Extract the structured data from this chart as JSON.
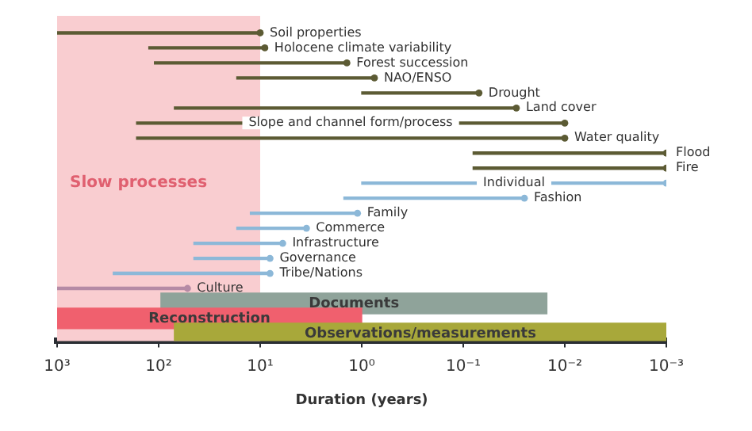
{
  "chart_data": {
    "type": "bar",
    "orientation": "horizontal",
    "xlabel": "Duration (years)",
    "categories": [
      "Soil properties",
      "Holocene climate variability",
      "Forest succession",
      "NAO/ENSO",
      "Drought",
      "Land cover",
      "Slope and channel form/process",
      "Water quality",
      "Flood",
      "Fire",
      "Individual",
      "Fashion",
      "Family",
      "Commerce",
      "Infrastructure",
      "Governance",
      "Tribe/Nations",
      "Culture",
      "Documents",
      "Reconstruction",
      "Observations/measurements"
    ],
    "series": [
      {
        "base": [
          10,
          9,
          1.4,
          0.75,
          0.07,
          0.03,
          0.01,
          0.01,
          0.001,
          0.001,
          0.001,
          0.025,
          1.1,
          3.5,
          6,
          8,
          8,
          52,
          null,
          null,
          null
        ],
        "values": [
          990,
          116,
          108.6,
          16.25,
          0.93,
          69.97,
          164.99,
          164.99,
          0.079,
          0.079,
          0.999,
          1.475,
          11.4,
          13.5,
          39,
          37,
          272,
          948,
          null,
          null,
          null
        ],
        "colors": [
          "#5c5b34",
          "#5c5b34",
          "#5c5b34",
          "#5c5b34",
          "#5c5b34",
          "#5c5b34",
          "#5c5b34",
          "#5c5b34",
          "#5c5b34",
          "#5c5b34",
          "#8cb8d8",
          "#8cb8d8",
          "#8cb8d8",
          "#8cb8d8",
          "#8cb8d8",
          "#8cb8d8",
          "#8cb8d8",
          "#b58aa5",
          null,
          null,
          null
        ]
      },
      {
        "base": [
          null,
          null,
          null,
          null,
          null,
          null,
          null,
          null,
          null,
          null,
          null,
          null,
          null,
          null,
          null,
          null,
          null,
          null,
          0.015,
          1,
          0.001
        ],
        "values": [
          null,
          null,
          null,
          null,
          null,
          null,
          null,
          null,
          null,
          null,
          null,
          null,
          null,
          null,
          null,
          null,
          null,
          null,
          94.985,
          999,
          69.999
        ],
        "colors": [
          null,
          null,
          null,
          null,
          null,
          null,
          null,
          null,
          null,
          null,
          null,
          null,
          null,
          null,
          null,
          null,
          null,
          null,
          "#8fa39a",
          "#f0606e",
          "#a8a83a"
        ]
      },
      {
        "type": "scatter",
        "marker": "circle",
        "values": [
          10,
          9,
          1.4,
          0.75,
          0.07,
          0.03,
          0.01,
          0.01,
          0.001,
          0.001,
          0.001,
          0.025,
          1.1,
          3.5,
          6,
          8,
          8,
          52,
          null,
          null,
          null
        ],
        "colors": [
          "#5c5b34",
          "#5c5b34",
          "#5c5b34",
          "#5c5b34",
          "#5c5b34",
          "#5c5b34",
          "#5c5b34",
          "#5c5b34",
          "#5c5b34",
          "#5c5b34",
          "#8cb8d8",
          "#8cb8d8",
          "#8cb8d8",
          "#8cb8d8",
          "#8cb8d8",
          "#8cb8d8",
          "#8cb8d8",
          "#b58aa5",
          null,
          null,
          null
        ]
      }
    ],
    "xlim": [
      1000,
      0.001
    ],
    "xticks": [
      {
        "value": 1000,
        "label": "10³"
      },
      {
        "value": 100,
        "label": "10²"
      },
      {
        "value": 10,
        "label": "10¹"
      },
      {
        "value": 1,
        "label": "10⁰"
      },
      {
        "value": 0.1,
        "label": "10⁻¹"
      },
      {
        "value": 0.01,
        "label": "10⁻²"
      },
      {
        "value": 0.001,
        "label": "10⁻³"
      }
    ],
    "log": "x",
    "grid": false,
    "legend": false,
    "bands": [
      {
        "axis": "x",
        "from": 1000,
        "to": 10,
        "label": "Slow processes",
        "color": "#f9cdd0"
      }
    ]
  }
}
